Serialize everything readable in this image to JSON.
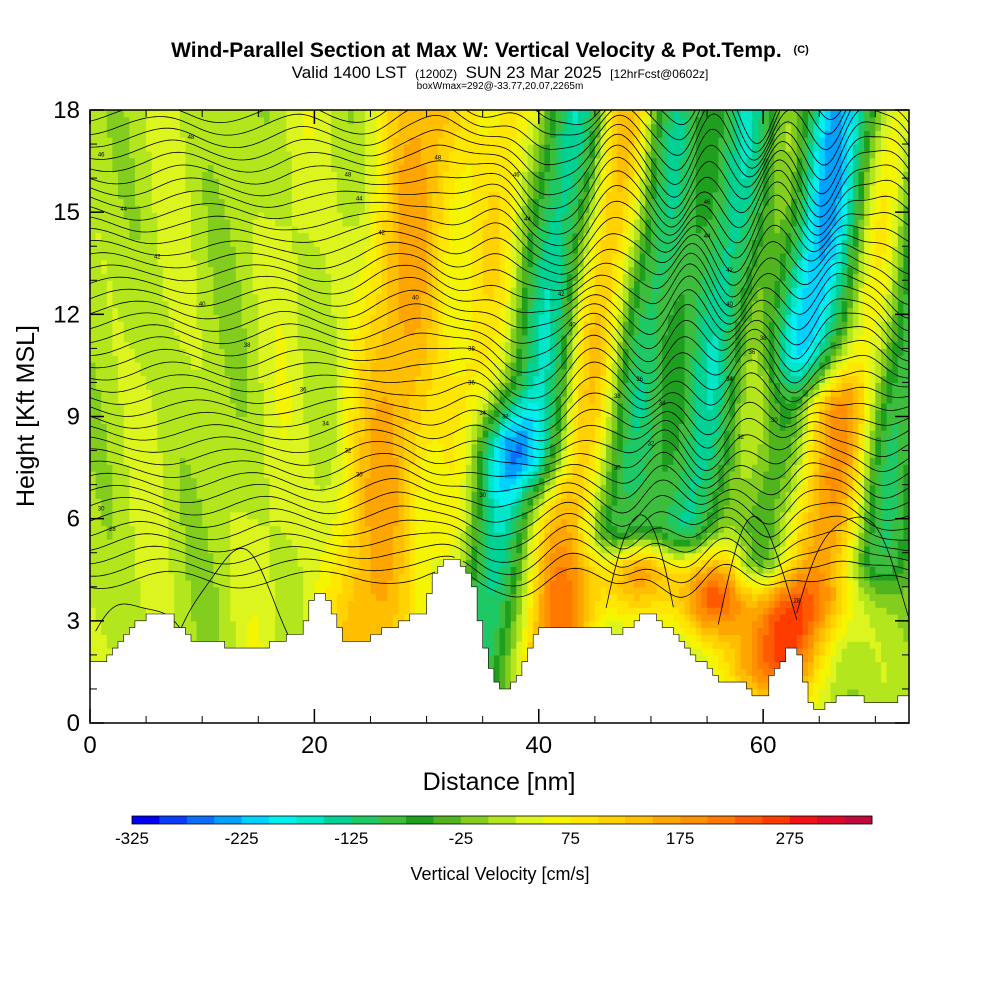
{
  "chart_data": {
    "type": "heatmap",
    "title": "Wind-Parallel Section at Max W: Vertical Velocity & Pot.Temp.",
    "title_mark": "(C)",
    "subtitle_parts": [
      "Valid 1400 LST",
      "(1200Z)",
      "SUN 23 Mar 2025",
      "[12hrFcst@0602z]"
    ],
    "subtitle2": "boxWmax=292@-33.77,20.07,2265m",
    "xlabel": "Distance [nm]",
    "ylabel": "Height [Kft MSL]",
    "xlim": [
      0,
      73
    ],
    "ylim": [
      0,
      18
    ],
    "xticks": [
      0,
      20,
      40,
      60
    ],
    "yticks": [
      0,
      3,
      6,
      9,
      12,
      15,
      18
    ],
    "colorbar": {
      "label": "Vertical Velocity [cm/s]",
      "ticks": [
        -325,
        -225,
        -125,
        -25,
        75,
        175,
        275
      ],
      "levels": [
        -325,
        -300,
        -275,
        -250,
        -225,
        -200,
        -175,
        -150,
        -125,
        -100,
        -75,
        -50,
        -25,
        0,
        25,
        50,
        75,
        100,
        125,
        150,
        175,
        200,
        225,
        250,
        275,
        300,
        325
      ],
      "colors": [
        "#0000f0",
        "#0a3cff",
        "#0a6eff",
        "#00a0ff",
        "#00d2ff",
        "#00f0f0",
        "#00e6c8",
        "#00d296",
        "#1ec864",
        "#3cbe3c",
        "#1ea01e",
        "#50b41e",
        "#82cd1e",
        "#b4e61e",
        "#dcf51e",
        "#f5f500",
        "#ffe600",
        "#ffd200",
        "#ffbe00",
        "#ffa500",
        "#ff9100",
        "#ff7800",
        "#ff5a00",
        "#ff3c00",
        "#f01414",
        "#dc0a28",
        "#be0a3c"
      ]
    },
    "vertical_velocity_plumes": [
      {
        "x": 5,
        "z_range": [
          1,
          18
        ],
        "w": 20,
        "tilt_per_kft": 0.25
      },
      {
        "x": 11,
        "z_range": [
          1,
          18
        ],
        "w": -5,
        "tilt_per_kft": 0.25
      },
      {
        "x": 16,
        "z_range": [
          1,
          18
        ],
        "w": 30,
        "tilt_per_kft": 0.25
      },
      {
        "x": 24,
        "z_range": [
          2,
          18
        ],
        "w": 85,
        "tilt_per_kft": 0.35
      },
      {
        "x": 27,
        "z_range": [
          2,
          18
        ],
        "w": 110,
        "tilt_per_kft": 0.35
      },
      {
        "x": 33,
        "z_range": [
          2,
          18
        ],
        "w": 90,
        "tilt_per_kft": 0.4
      },
      {
        "x": 36,
        "z_range": [
          1,
          8
        ],
        "w": -170,
        "tilt_per_kft": 0.4
      },
      {
        "x": 39,
        "z_range": [
          8,
          18
        ],
        "w": -190,
        "tilt_per_kft": 0.4
      },
      {
        "x": 43,
        "z_range": [
          2,
          18
        ],
        "w": 200,
        "tilt_per_kft": 0.4
      },
      {
        "x": 48,
        "z_range": [
          6,
          18
        ],
        "w": -310,
        "tilt_per_kft": 0.45
      },
      {
        "x": 50,
        "z_range": [
          5,
          18
        ],
        "w": 275,
        "tilt_per_kft": 0.45
      },
      {
        "x": 54,
        "z_range": [
          6,
          18
        ],
        "w": -325,
        "tilt_per_kft": 0.45
      },
      {
        "x": 57,
        "z_range": [
          4,
          18
        ],
        "w": 260,
        "tilt_per_kft": 0.45
      },
      {
        "x": 61,
        "z_range": [
          5,
          18
        ],
        "w": -300,
        "tilt_per_kft": 0.45
      },
      {
        "x": 63,
        "z_range": [
          2,
          9
        ],
        "w": 250,
        "tilt_per_kft": 0.45
      },
      {
        "x": 67,
        "z_range": [
          4,
          18
        ],
        "w": 140,
        "tilt_per_kft": 0.45
      },
      {
        "x": 70,
        "z_range": [
          5,
          18
        ],
        "w": -150,
        "tilt_per_kft": 0.45
      }
    ],
    "terrain_kft": {
      "x": [
        0,
        1.5,
        2.5,
        3.5,
        5,
        7,
        9,
        12,
        16,
        19,
        20,
        21,
        22.5,
        24,
        26,
        28,
        30,
        30.5,
        31,
        32,
        33,
        34,
        34.5,
        35,
        36,
        37,
        38,
        39,
        40,
        42,
        44,
        46,
        47,
        48,
        49,
        50,
        51,
        52,
        53,
        54,
        55,
        56,
        57,
        58,
        59,
        60,
        61,
        62,
        62.5,
        63,
        63.5,
        64,
        65,
        66,
        67,
        68,
        69,
        70,
        71,
        72,
        73
      ],
      "z": [
        1.7,
        1.9,
        2.3,
        2.7,
        3.1,
        3.2,
        2.4,
        2.3,
        2.3,
        2.7,
        3.8,
        3.7,
        2.5,
        2.3,
        2.7,
        3.0,
        3.3,
        4.2,
        4.5,
        4.8,
        4.8,
        4.2,
        3.6,
        2.5,
        1.2,
        0.9,
        1.3,
        1.9,
        2.8,
        2.8,
        2.8,
        2.8,
        2.6,
        2.8,
        3.1,
        3.3,
        3.0,
        2.6,
        2.3,
        2.0,
        1.6,
        1.3,
        1.1,
        1.3,
        0.9,
        0.7,
        1.5,
        2.0,
        2.3,
        2.3,
        1.6,
        0.8,
        0.3,
        0.6,
        0.9,
        0.8,
        0.7,
        0.7,
        0.7,
        0.7,
        0.8
      ]
    },
    "potential_temperature_labels": [
      {
        "x": 1,
        "z": 16.7,
        "label": "46"
      },
      {
        "x": 3,
        "z": 15.1,
        "label": "44"
      },
      {
        "x": 6,
        "z": 13.7,
        "label": "42"
      },
      {
        "x": 9,
        "z": 17.2,
        "label": "48"
      },
      {
        "x": 10,
        "z": 12.3,
        "label": "40"
      },
      {
        "x": 14,
        "z": 11.1,
        "label": "38"
      },
      {
        "x": 1,
        "z": 6.3,
        "label": "30"
      },
      {
        "x": 2,
        "z": 5.7,
        "label": "28"
      },
      {
        "x": 19,
        "z": 9.8,
        "label": "36"
      },
      {
        "x": 21,
        "z": 8.8,
        "label": "34"
      },
      {
        "x": 23,
        "z": 8.0,
        "label": "32"
      },
      {
        "x": 24,
        "z": 7.3,
        "label": "30"
      },
      {
        "x": 23,
        "z": 16.1,
        "label": "48"
      },
      {
        "x": 24,
        "z": 15.4,
        "label": "44"
      },
      {
        "x": 26,
        "z": 14.4,
        "label": "42"
      },
      {
        "x": 29,
        "z": 12.5,
        "label": "40"
      },
      {
        "x": 31,
        "z": 16.6,
        "label": "48"
      },
      {
        "x": 34,
        "z": 11.0,
        "label": "38"
      },
      {
        "x": 34,
        "z": 10.0,
        "label": "36"
      },
      {
        "x": 35,
        "z": 9.1,
        "label": "34"
      },
      {
        "x": 37,
        "z": 9.0,
        "label": "32"
      },
      {
        "x": 35,
        "z": 6.7,
        "label": "30"
      },
      {
        "x": 38,
        "z": 16.1,
        "label": "46"
      },
      {
        "x": 39,
        "z": 14.8,
        "label": "44"
      },
      {
        "x": 42,
        "z": 12.6,
        "label": "42"
      },
      {
        "x": 43,
        "z": 11.7,
        "label": "40"
      },
      {
        "x": 47,
        "z": 9.6,
        "label": "38"
      },
      {
        "x": 49,
        "z": 10.1,
        "label": "36"
      },
      {
        "x": 51,
        "z": 9.4,
        "label": "34"
      },
      {
        "x": 50,
        "z": 8.2,
        "label": "32"
      },
      {
        "x": 47,
        "z": 7.5,
        "label": "30"
      },
      {
        "x": 55,
        "z": 15.3,
        "label": "46"
      },
      {
        "x": 55,
        "z": 14.3,
        "label": "44"
      },
      {
        "x": 57,
        "z": 13.3,
        "label": "42"
      },
      {
        "x": 57,
        "z": 12.3,
        "label": "40"
      },
      {
        "x": 60,
        "z": 11.3,
        "label": "38"
      },
      {
        "x": 59,
        "z": 10.9,
        "label": "36"
      },
      {
        "x": 57,
        "z": 10.1,
        "label": "34"
      },
      {
        "x": 58,
        "z": 8.4,
        "label": "32"
      },
      {
        "x": 61,
        "z": 8.9,
        "label": "30"
      },
      {
        "x": 63,
        "z": 3.6,
        "label": "28"
      }
    ]
  }
}
